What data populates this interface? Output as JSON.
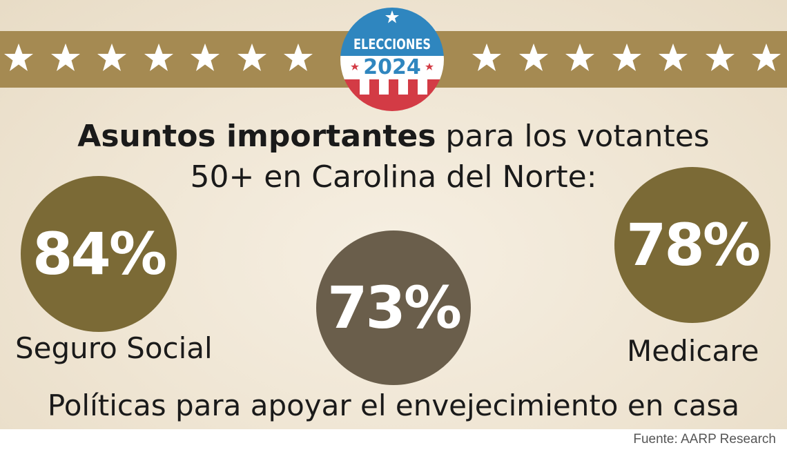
{
  "badge": {
    "line1": "ELECCIONES",
    "line2": "2024"
  },
  "title": {
    "bold": "Asuntos importantes",
    "rest": " para los votantes",
    "line2": "50+ en Carolina del Norte:"
  },
  "issues": [
    {
      "percent": "84%",
      "label": "Seguro Social",
      "color": "#7b6a36"
    },
    {
      "percent": "73%",
      "label": "Políticas para apoyar el envejecimiento en casa",
      "color": "#6a5e4b"
    },
    {
      "percent": "78%",
      "label": "Medicare",
      "color": "#7b6a36"
    }
  ],
  "source": "Fuente: AARP Research",
  "colors": {
    "banner": "#a58a52",
    "badge_blue": "#2f86bf",
    "badge_red": "#d33b45"
  }
}
